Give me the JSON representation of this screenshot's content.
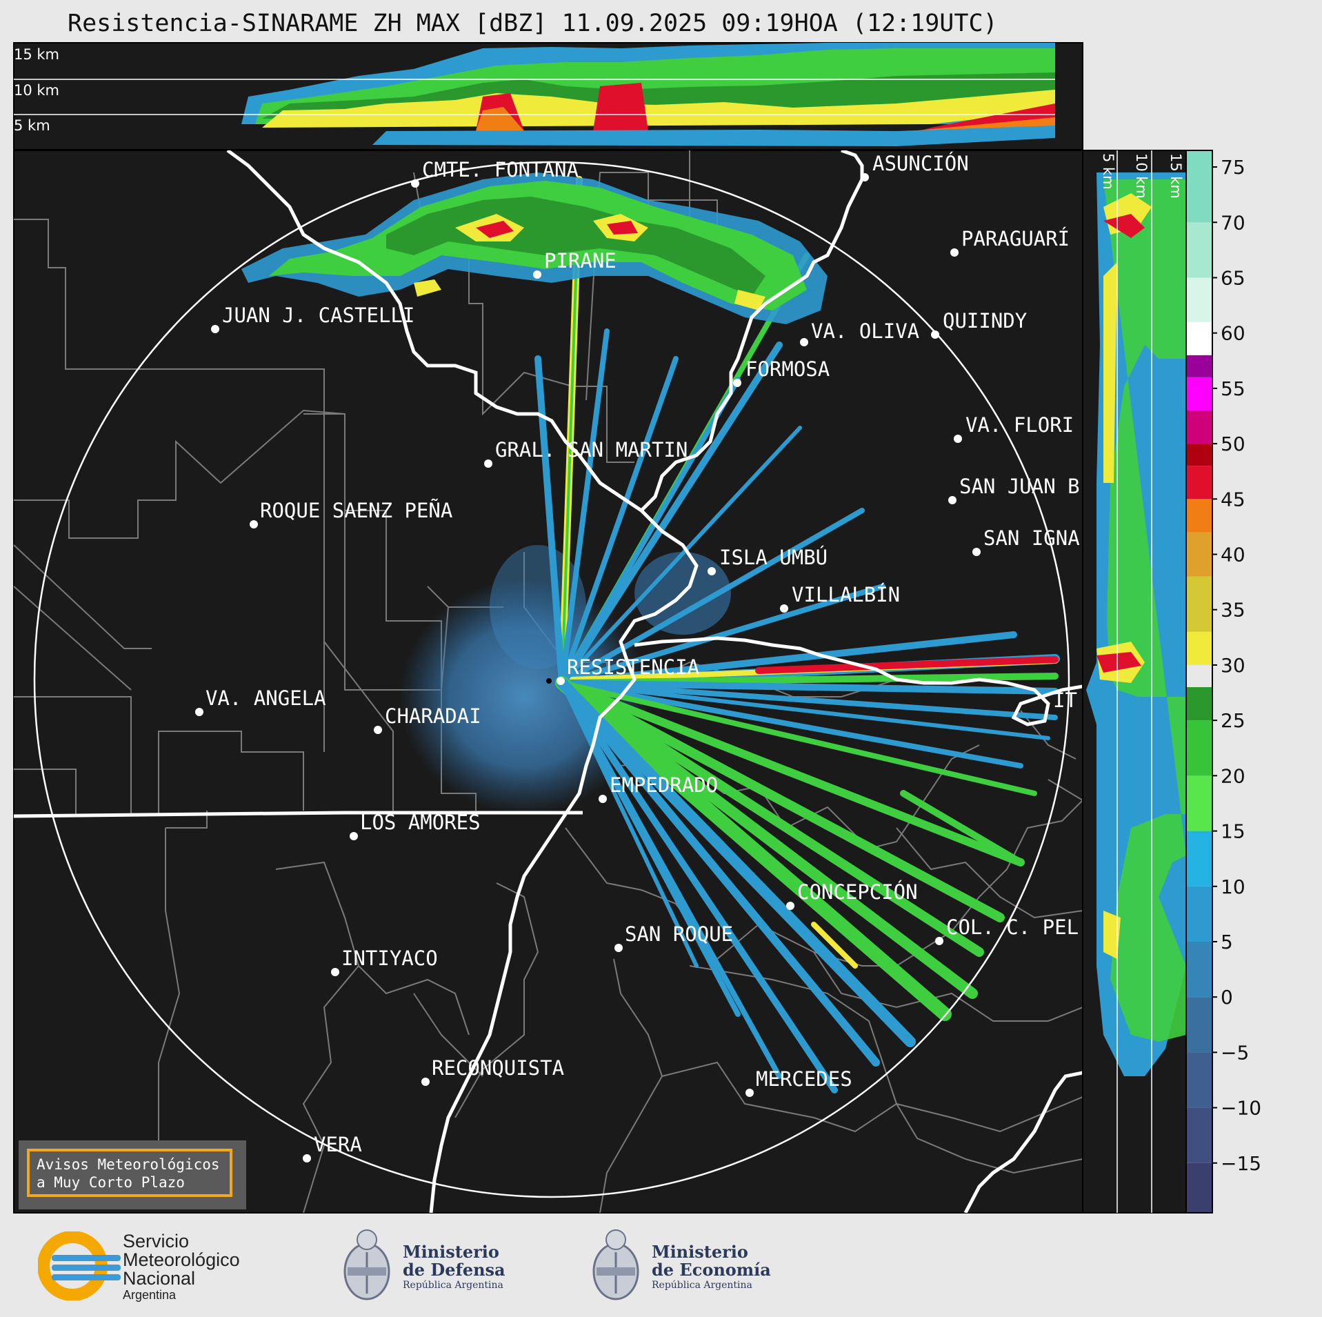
{
  "title": "Resistencia-SINARAME ZH MAX [dBZ] 11.09.2025 09:19HOA (12:19UTC)",
  "top_panel": {
    "altitude_labels": [
      "15 km",
      "10 km",
      "5 km"
    ]
  },
  "side_panel": {
    "altitude_labels": [
      "5 km",
      "10 km",
      "15 km"
    ]
  },
  "colorbar": {
    "ticks": [
      "75",
      "70",
      "65",
      "60",
      "55",
      "50",
      "45",
      "40",
      "35",
      "30",
      "25",
      "20",
      "15",
      "10",
      "5",
      "0",
      "−5",
      "−10",
      "−15"
    ],
    "colors": [
      "#3a3f6e",
      "#404f80",
      "#3e5f90",
      "#3a70a0",
      "#3585b8",
      "#2d9bd0",
      "#24b2e2",
      "#58e64c",
      "#38c438",
      "#2a982c",
      "#f0ea3a",
      "#d4c834",
      "#e0a12c",
      "#f07e14",
      "#e0102c",
      "#b00010",
      "#d0007a",
      "#ff00ff",
      "#9a009a",
      "#ffffff",
      "#d8f5ea",
      "#a6e8d0",
      "#80dcc0"
    ]
  },
  "cities": [
    {
      "name": "CMTE. FONTANA"
    },
    {
      "name": "ASUNCIÓN"
    },
    {
      "name": "PARAGUARÍ"
    },
    {
      "name": "PIRANE"
    },
    {
      "name": "JUAN J. CASTELLI"
    },
    {
      "name": "VA. OLIVA"
    },
    {
      "name": "QUIINDY"
    },
    {
      "name": "FORMOSA"
    },
    {
      "name": "VA. FLORI"
    },
    {
      "name": "GRAL. SAN MARTIN"
    },
    {
      "name": "SAN JUAN B"
    },
    {
      "name": "ROQUE SAENZ PEÑA"
    },
    {
      "name": "SAN IGNA"
    },
    {
      "name": "ISLA UMBÚ"
    },
    {
      "name": "VILLALBÍN"
    },
    {
      "name": "RESISTENCIA"
    },
    {
      "name": "IT"
    },
    {
      "name": "VA. ANGELA"
    },
    {
      "name": "CHARADAI"
    },
    {
      "name": "EMPEDRADO"
    },
    {
      "name": "LOS AMORES"
    },
    {
      "name": "CONCEPCIÓN"
    },
    {
      "name": "COL. C. PEL"
    },
    {
      "name": "SAN ROQUE"
    },
    {
      "name": "INTIYACO"
    },
    {
      "name": "RECONQUISTA"
    },
    {
      "name": "MERCEDES"
    },
    {
      "name": "VERA"
    }
  ],
  "alert_box": {
    "line1": "Avisos Meteorológicos",
    "line2": "a Muy Corto Plazo"
  },
  "logos": {
    "smn": {
      "line1": "Servicio",
      "line2": "Meteorológico",
      "line3": "Nacional",
      "line4": "Argentina"
    },
    "defensa": {
      "line1": "Ministerio",
      "line2": "de Defensa",
      "line3": "República Argentina"
    },
    "economia": {
      "line1": "Ministerio",
      "line2": "de Economía",
      "line3": "República Argentina"
    }
  }
}
